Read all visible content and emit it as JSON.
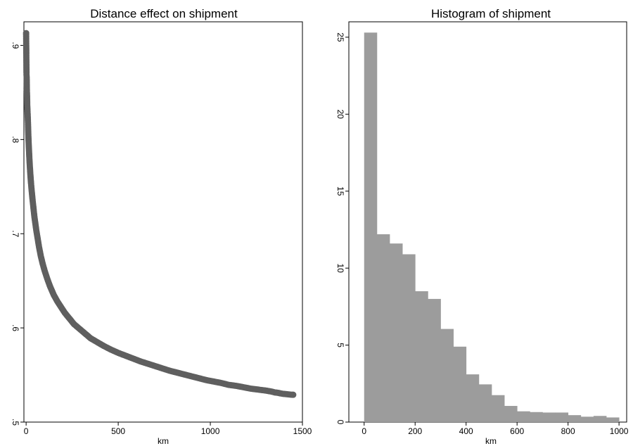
{
  "chart_data": [
    {
      "type": "scatter",
      "title": "Distance effect on shipment",
      "xlabel": "km",
      "ylabel": "",
      "xlim": [
        -12,
        1500
      ],
      "ylim": [
        0.5,
        0.925
      ],
      "x_ticks": [
        0,
        500,
        1000,
        1500
      ],
      "x_tick_labels": [
        "0",
        "500",
        "1000",
        "1500"
      ],
      "y_ticks": [
        0.5,
        0.6,
        0.7,
        0.8,
        0.9
      ],
      "y_tick_labels": [
        ".5",
        ".6",
        ".7",
        ".8",
        ".9"
      ],
      "grid": false,
      "legend": "none",
      "marker_color": "#5f5f5f",
      "series": [
        {
          "x": [
            0,
            2,
            3,
            4,
            5,
            6,
            8,
            10,
            12,
            14,
            16,
            18,
            20,
            23,
            26,
            30,
            35,
            40,
            45,
            50,
            55,
            60,
            70,
            80,
            90,
            100,
            115,
            130,
            150,
            170,
            190,
            210,
            235,
            260,
            290,
            320,
            350,
            385,
            420,
            460,
            500,
            540,
            580,
            620,
            660,
            700,
            740,
            780,
            820,
            860,
            900,
            940,
            980,
            1020,
            1060,
            1100,
            1140,
            1180,
            1220,
            1260,
            1300,
            1330,
            1350,
            1370,
            1380,
            1395,
            1445,
            1450
          ],
          "y": [
            0.913,
            0.869,
            0.866,
            0.852,
            0.847,
            0.837,
            0.828,
            0.818,
            0.805,
            0.795,
            0.787,
            0.779,
            0.772,
            0.763,
            0.755,
            0.746,
            0.736,
            0.727,
            0.718,
            0.711,
            0.704,
            0.698,
            0.686,
            0.676,
            0.668,
            0.661,
            0.652,
            0.644,
            0.635,
            0.628,
            0.622,
            0.616,
            0.61,
            0.604,
            0.599,
            0.594,
            0.589,
            0.585,
            0.581,
            0.577,
            0.5735,
            0.5705,
            0.5675,
            0.5645,
            0.562,
            0.5595,
            0.557,
            0.5545,
            0.5525,
            0.5505,
            0.5485,
            0.5465,
            0.5445,
            0.543,
            0.5415,
            0.5395,
            0.5385,
            0.537,
            0.5355,
            0.5345,
            0.5335,
            0.5325,
            0.5315,
            0.531,
            0.5305,
            0.53,
            0.529,
            0.529
          ]
        }
      ]
    },
    {
      "type": "bar",
      "title": "Histogram of shipment",
      "xlabel": "km",
      "ylabel": "",
      "xlim": [
        -60,
        1030
      ],
      "ylim": [
        0,
        26
      ],
      "x_ticks": [
        0,
        200,
        400,
        600,
        800,
        1000
      ],
      "x_tick_labels": [
        "0",
        "200",
        "400",
        "600",
        "800",
        "1000"
      ],
      "y_ticks": [
        0,
        5,
        10,
        15,
        20,
        25
      ],
      "y_tick_labels": [
        "0",
        "5",
        "10",
        "15",
        "20",
        "25"
      ],
      "grid": false,
      "legend": "none",
      "bar_color": "#9c9c9c",
      "bin_edges": [
        0,
        50,
        100,
        150,
        200,
        250,
        300,
        350,
        400,
        450,
        500,
        550,
        600,
        650,
        700,
        750,
        800,
        850,
        900,
        950,
        1000
      ],
      "values": [
        25.3,
        12.2,
        11.6,
        10.9,
        8.5,
        8.0,
        6.05,
        4.9,
        3.1,
        2.45,
        1.75,
        1.05,
        0.7,
        0.65,
        0.62,
        0.62,
        0.45,
        0.35,
        0.4,
        0.3
      ]
    }
  ]
}
